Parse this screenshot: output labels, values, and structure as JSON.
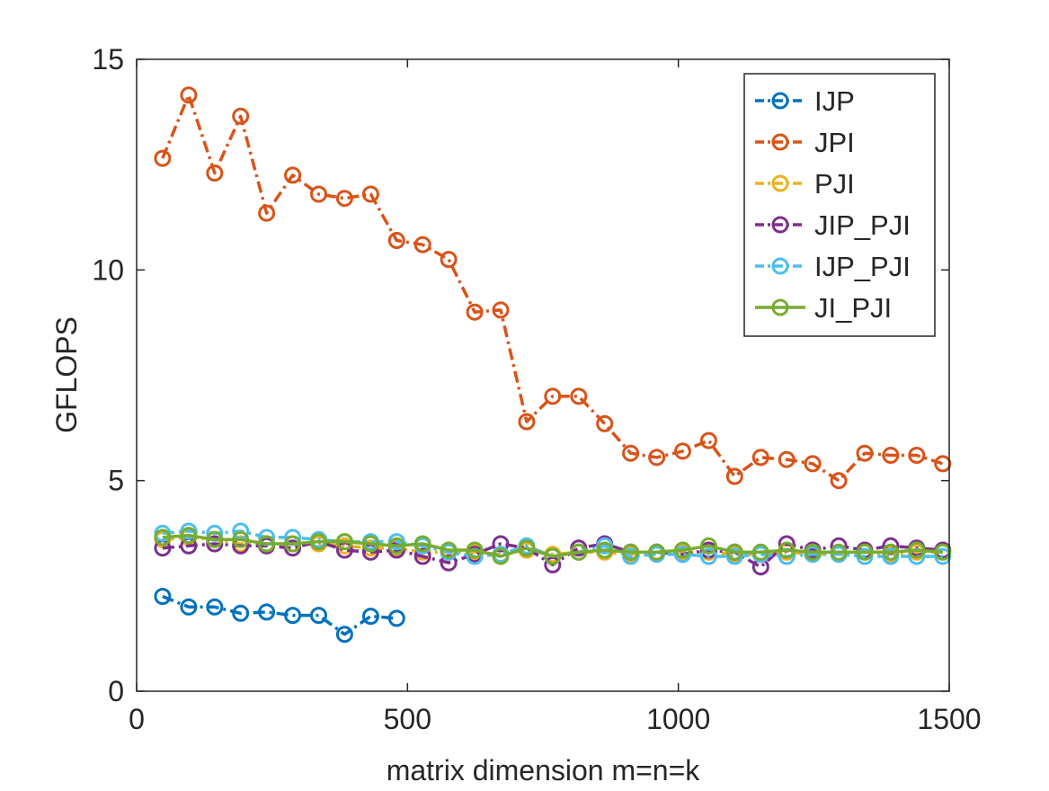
{
  "chart_data": {
    "type": "line",
    "title": "",
    "xlabel": "matrix dimension m=n=k",
    "ylabel": "GFLOPS",
    "xlim": [
      0,
      1500
    ],
    "ylim": [
      0,
      15
    ],
    "xticks": [
      0,
      500,
      1000,
      1500
    ],
    "yticks": [
      0,
      5,
      10,
      15
    ],
    "grid": false,
    "legend_position": "top-right",
    "series": [
      {
        "name": "IJP",
        "color": "#0072BD",
        "line_style": "dash-dot",
        "marker": "circle",
        "x": [
          48,
          96,
          144,
          192,
          240,
          288,
          336,
          384,
          432,
          480
        ],
        "y": [
          2.25,
          2.0,
          2.0,
          1.85,
          1.88,
          1.8,
          1.8,
          1.35,
          1.78,
          1.73
        ]
      },
      {
        "name": "JPI",
        "color": "#D95319",
        "line_style": "dash-dot",
        "marker": "circle",
        "x": [
          48,
          96,
          144,
          192,
          240,
          288,
          336,
          384,
          432,
          480,
          528,
          576,
          624,
          672,
          720,
          768,
          816,
          864,
          912,
          960,
          1008,
          1056,
          1104,
          1152,
          1200,
          1248,
          1296,
          1344,
          1392,
          1440,
          1488
        ],
        "y": [
          12.65,
          14.15,
          12.3,
          13.65,
          11.35,
          12.25,
          11.8,
          11.7,
          11.8,
          10.7,
          10.6,
          10.25,
          9.0,
          9.05,
          6.4,
          7.0,
          7.0,
          6.35,
          5.65,
          5.55,
          5.7,
          5.95,
          5.1,
          5.55,
          5.5,
          5.4,
          5.0,
          5.65,
          5.6,
          5.6,
          5.4
        ]
      },
      {
        "name": "PJI",
        "color": "#EDB120",
        "line_style": "dash-dot",
        "marker": "circle",
        "x": [
          48,
          96,
          144,
          192,
          240,
          288,
          336,
          384,
          432,
          480,
          528,
          576,
          624,
          672,
          720,
          768,
          816,
          864,
          912,
          960,
          1008,
          1056,
          1104,
          1152,
          1200,
          1248,
          1296,
          1344,
          1392,
          1440,
          1488
        ],
        "y": [
          3.6,
          3.65,
          3.6,
          3.5,
          3.5,
          3.5,
          3.5,
          3.45,
          3.4,
          3.4,
          3.3,
          3.3,
          3.3,
          3.25,
          3.35,
          3.25,
          3.3,
          3.3,
          3.25,
          3.3,
          3.3,
          3.3,
          3.25,
          3.25,
          3.3,
          3.25,
          3.25,
          3.3,
          3.25,
          3.3,
          3.3
        ]
      },
      {
        "name": "JIP_PJI",
        "color": "#7E2F8E",
        "line_style": "dash-dot",
        "marker": "circle",
        "x": [
          48,
          96,
          144,
          192,
          240,
          288,
          336,
          384,
          432,
          480,
          528,
          576,
          624,
          672,
          720,
          768,
          816,
          864,
          912,
          960,
          1008,
          1056,
          1104,
          1152,
          1200,
          1248,
          1296,
          1344,
          1392,
          1440,
          1488
        ],
        "y": [
          3.4,
          3.45,
          3.5,
          3.45,
          3.45,
          3.4,
          3.55,
          3.35,
          3.3,
          3.35,
          3.2,
          3.05,
          3.25,
          3.5,
          3.4,
          3.0,
          3.4,
          3.5,
          3.3,
          3.3,
          3.25,
          3.35,
          3.3,
          2.95,
          3.5,
          3.35,
          3.45,
          3.35,
          3.45,
          3.4,
          3.35
        ]
      },
      {
        "name": "IJP_PJI",
        "color": "#4DBEEE",
        "line_style": "dash-dot",
        "marker": "circle",
        "x": [
          48,
          96,
          144,
          192,
          240,
          288,
          336,
          384,
          432,
          480,
          528,
          576,
          624,
          672,
          720,
          768,
          816,
          864,
          912,
          960,
          1008,
          1056,
          1104,
          1152,
          1200,
          1248,
          1296,
          1344,
          1392,
          1440,
          1488
        ],
        "y": [
          3.75,
          3.8,
          3.75,
          3.8,
          3.65,
          3.65,
          3.6,
          3.55,
          3.55,
          3.55,
          3.45,
          3.3,
          3.2,
          3.25,
          3.45,
          3.2,
          3.3,
          3.45,
          3.2,
          3.25,
          3.25,
          3.2,
          3.2,
          3.25,
          3.2,
          3.25,
          3.25,
          3.2,
          3.2,
          3.2,
          3.2
        ]
      },
      {
        "name": "JI_PJI",
        "color": "#77AC30",
        "line_style": "solid",
        "marker": "circle",
        "x": [
          48,
          96,
          144,
          192,
          240,
          288,
          336,
          384,
          432,
          480,
          528,
          576,
          624,
          672,
          720,
          768,
          816,
          864,
          912,
          960,
          1008,
          1056,
          1104,
          1152,
          1200,
          1248,
          1296,
          1344,
          1392,
          1440,
          1488
        ],
        "y": [
          3.65,
          3.7,
          3.6,
          3.6,
          3.5,
          3.5,
          3.55,
          3.55,
          3.5,
          3.45,
          3.5,
          3.35,
          3.35,
          3.2,
          3.4,
          3.2,
          3.3,
          3.35,
          3.3,
          3.3,
          3.35,
          3.45,
          3.3,
          3.3,
          3.35,
          3.3,
          3.3,
          3.3,
          3.3,
          3.35,
          3.3
        ]
      }
    ]
  }
}
